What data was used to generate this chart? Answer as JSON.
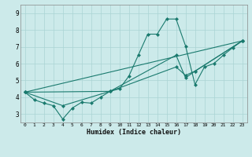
{
  "xlabel": "Humidex (Indice chaleur)",
  "xlim": [
    -0.5,
    23.5
  ],
  "ylim": [
    2.5,
    9.5
  ],
  "xticks": [
    0,
    1,
    2,
    3,
    4,
    5,
    6,
    7,
    8,
    9,
    10,
    11,
    12,
    13,
    14,
    15,
    16,
    17,
    18,
    19,
    20,
    21,
    22,
    23
  ],
  "yticks": [
    3,
    4,
    5,
    6,
    7,
    8,
    9
  ],
  "bg_color": "#cceaea",
  "line_color": "#1a7a6e",
  "line1_x": [
    0,
    1,
    2,
    3,
    4,
    5,
    6,
    7,
    8,
    9,
    10,
    11,
    12,
    13,
    14,
    15,
    16,
    17,
    18,
    19,
    20,
    21,
    22,
    23
  ],
  "line1_y": [
    4.3,
    3.85,
    3.65,
    3.5,
    2.7,
    3.35,
    3.7,
    3.65,
    4.0,
    4.35,
    4.5,
    5.25,
    6.5,
    7.75,
    7.75,
    8.65,
    8.65,
    7.05,
    4.75,
    5.8,
    6.0,
    6.5,
    6.95,
    7.35
  ],
  "line2_x": [
    0,
    23
  ],
  "line2_y": [
    4.3,
    7.35
  ],
  "line3_x": [
    0,
    4,
    9,
    16,
    17,
    18,
    23
  ],
  "line3_y": [
    4.3,
    3.5,
    4.35,
    6.5,
    5.15,
    5.55,
    7.35
  ],
  "line4_x": [
    0,
    9,
    16,
    17,
    18,
    23
  ],
  "line4_y": [
    4.3,
    4.35,
    5.8,
    5.3,
    5.55,
    7.35
  ]
}
